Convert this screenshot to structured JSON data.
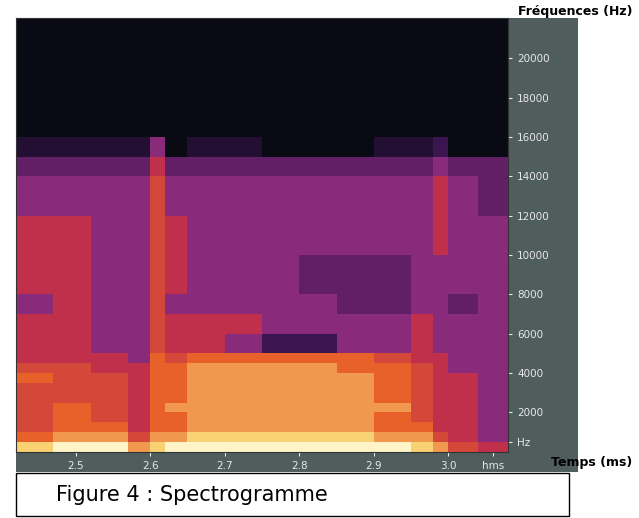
{
  "chart_data": {
    "type": "heatmap",
    "title": "Figure 4 : Spectrogramme",
    "x_label": "Temps (ms)",
    "y_label": "Fréquences (Hz)",
    "x_edges": [
      2.42,
      2.47,
      2.52,
      2.57,
      2.6,
      2.62,
      2.65,
      2.7,
      2.75,
      2.8,
      2.85,
      2.9,
      2.95,
      2.98,
      3.0,
      3.04,
      3.08
    ],
    "y_edges": [
      0,
      500,
      1000,
      1500,
      2000,
      2500,
      3000,
      3500,
      4000,
      4500,
      5000,
      6000,
      7000,
      8000,
      10000,
      12000,
      14000,
      15000,
      16000,
      22050
    ],
    "cells": [
      [
        9,
        10,
        10,
        8,
        9,
        10,
        10,
        10,
        10,
        10,
        10,
        10,
        9,
        8,
        6,
        5
      ],
      [
        7,
        8,
        8,
        6,
        8,
        8,
        9,
        9,
        9,
        9,
        9,
        8,
        8,
        6,
        5,
        4
      ],
      [
        6,
        7,
        7,
        5,
        7,
        7,
        8,
        8,
        8,
        8,
        8,
        7,
        7,
        5,
        5,
        4
      ],
      [
        6,
        7,
        6,
        5,
        7,
        7,
        8,
        8,
        8,
        8,
        8,
        7,
        6,
        5,
        5,
        4
      ],
      [
        6,
        7,
        6,
        5,
        7,
        8,
        8,
        8,
        8,
        8,
        8,
        8,
        6,
        5,
        5,
        4
      ],
      [
        6,
        6,
        6,
        5,
        7,
        7,
        8,
        8,
        8,
        8,
        8,
        7,
        6,
        5,
        5,
        4
      ],
      [
        6,
        6,
        6,
        5,
        7,
        7,
        8,
        8,
        8,
        8,
        8,
        7,
        6,
        5,
        5,
        4
      ],
      [
        7,
        6,
        6,
        5,
        7,
        7,
        8,
        8,
        8,
        8,
        8,
        7,
        6,
        5,
        5,
        4
      ],
      [
        6,
        6,
        5,
        5,
        7,
        7,
        8,
        8,
        8,
        8,
        7,
        7,
        6,
        5,
        4,
        4
      ],
      [
        5,
        5,
        5,
        4,
        7,
        6,
        7,
        7,
        7,
        7,
        7,
        6,
        5,
        5,
        4,
        4
      ],
      [
        5,
        5,
        4,
        4,
        6,
        5,
        5,
        4,
        2,
        2,
        4,
        4,
        5,
        4,
        4,
        4
      ],
      [
        5,
        5,
        4,
        4,
        6,
        5,
        5,
        5,
        4,
        4,
        4,
        4,
        5,
        4,
        4,
        4
      ],
      [
        4,
        5,
        4,
        4,
        6,
        4,
        4,
        4,
        4,
        4,
        3,
        3,
        4,
        4,
        3,
        4
      ],
      [
        5,
        5,
        4,
        4,
        6,
        5,
        4,
        4,
        4,
        3,
        3,
        3,
        4,
        4,
        4,
        4
      ],
      [
        5,
        5,
        4,
        4,
        6,
        5,
        4,
        4,
        4,
        4,
        4,
        4,
        4,
        5,
        4,
        4
      ],
      [
        4,
        4,
        4,
        4,
        6,
        4,
        4,
        4,
        4,
        4,
        4,
        4,
        4,
        5,
        4,
        3
      ],
      [
        3,
        3,
        3,
        3,
        5,
        3,
        3,
        3,
        3,
        3,
        3,
        3,
        3,
        4,
        3,
        3
      ],
      [
        1,
        1,
        1,
        1,
        4,
        0,
        1,
        1,
        0,
        0,
        0,
        1,
        1,
        2,
        0,
        0
      ],
      [
        0,
        0,
        0,
        0,
        0,
        0,
        0,
        0,
        0,
        0,
        0,
        0,
        0,
        0,
        0,
        0
      ]
    ],
    "color_range": [
      0,
      10
    ],
    "xlim": [
      2.42,
      3.08
    ],
    "ylim": [
      0,
      22050
    ],
    "xticks": [
      2.5,
      2.6,
      2.7,
      2.8,
      2.9,
      3.0,
      {
        "value": 3.06,
        "label": "hms"
      }
    ],
    "yticks": [
      {
        "value": 500,
        "label": "Hz"
      },
      2000,
      4000,
      6000,
      8000,
      10000,
      12000,
      14000,
      16000,
      18000,
      20000
    ]
  }
}
